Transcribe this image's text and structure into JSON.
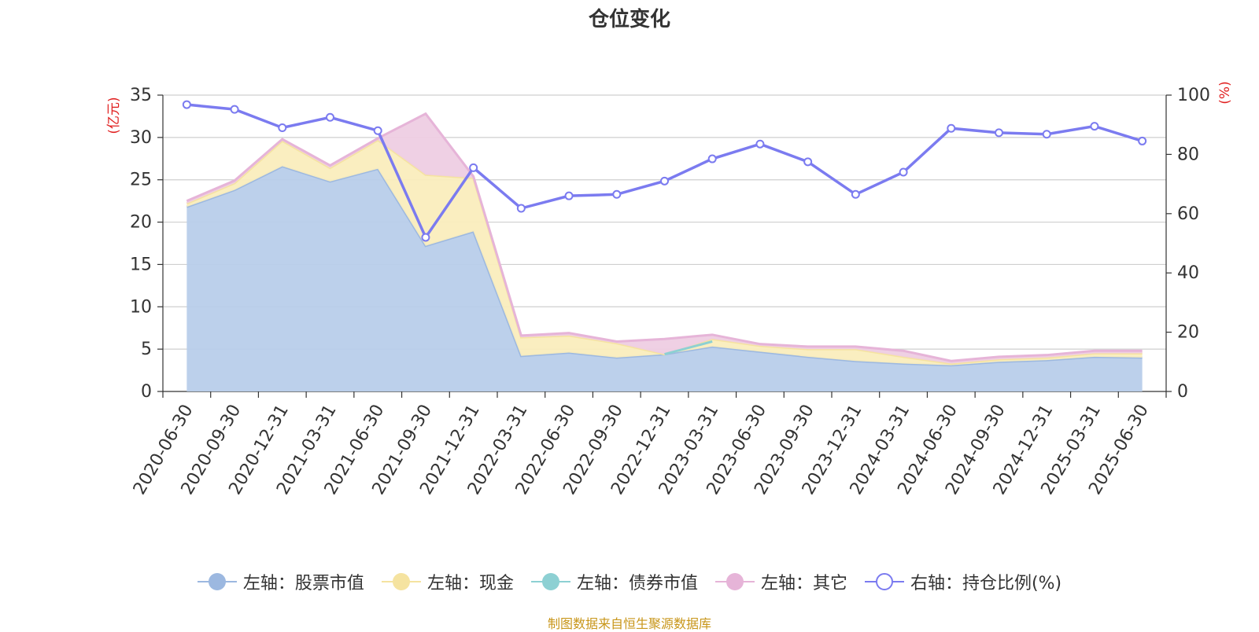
{
  "title": "仓位变化",
  "source": "制图数据来自恒生聚源数据库",
  "chart_data": {
    "type": "area",
    "categories": [
      "2020-06-30",
      "2020-09-30",
      "2020-12-31",
      "2021-03-31",
      "2021-06-30",
      "2021-09-30",
      "2021-12-31",
      "2022-03-31",
      "2022-06-30",
      "2022-09-30",
      "2022-12-31",
      "2023-03-31",
      "2023-06-30",
      "2023-09-30",
      "2023-12-31",
      "2024-03-31",
      "2024-06-30",
      "2024-09-30",
      "2024-12-31",
      "2025-03-31",
      "2025-06-30"
    ],
    "left_axis": {
      "label": "(亿元)",
      "ylim": [
        0,
        35
      ],
      "ticks": [
        0,
        5,
        10,
        15,
        20,
        25,
        30,
        35
      ]
    },
    "right_axis": {
      "label": "(%)",
      "ylim": [
        0,
        100
      ],
      "ticks": [
        0,
        20,
        40,
        60,
        80,
        100
      ]
    },
    "stacked": true,
    "series": [
      {
        "name": "左轴：股票市值",
        "axis": "left",
        "kind": "area",
        "color": "#9cb8e0",
        "fill": "#b8cdea",
        "values": [
          21.8,
          23.8,
          26.6,
          24.8,
          26.3,
          17.2,
          18.9,
          4.2,
          4.6,
          4.0,
          4.4,
          5.3,
          4.7,
          4.1,
          3.6,
          3.3,
          3.1,
          3.5,
          3.7,
          4.1,
          4.0
        ]
      },
      {
        "name": "左轴：现金",
        "axis": "left",
        "kind": "area",
        "color": "#f5e3a0",
        "fill": "#faedbd",
        "values": [
          0.4,
          0.8,
          3.0,
          1.6,
          3.4,
          8.4,
          6.3,
          2.2,
          2.0,
          1.7,
          0.0,
          0.9,
          0.7,
          0.9,
          1.4,
          0.8,
          0.2,
          0.3,
          0.3,
          0.4,
          0.5
        ]
      },
      {
        "name": "左轴：债券市值",
        "axis": "left",
        "kind": "area",
        "color": "#8dd0d3",
        "fill": "#a6dbdd",
        "values": [
          0,
          0,
          0,
          0,
          0,
          0,
          0,
          0,
          0,
          0,
          0,
          0.0,
          0,
          0,
          0,
          0,
          0,
          0,
          0,
          0,
          0
        ]
      },
      {
        "name": "左轴：其它",
        "axis": "left",
        "kind": "area",
        "color": "#e6b4d8",
        "fill": "#eecde3",
        "values": [
          0.3,
          0.3,
          0.2,
          0.3,
          0.2,
          7.2,
          0.2,
          0.2,
          0.3,
          0.2,
          1.8,
          0.5,
          0.2,
          0.3,
          0.3,
          0.7,
          0.3,
          0.3,
          0.3,
          0.3,
          0.3
        ]
      },
      {
        "name": "右轴：持仓比例(%)",
        "axis": "right",
        "kind": "line",
        "color": "#7b7bf0",
        "values": [
          96.8,
          95.2,
          89.0,
          92.5,
          88.0,
          52.0,
          75.5,
          61.8,
          66.0,
          66.5,
          71.0,
          78.5,
          83.5,
          77.5,
          66.5,
          74.0,
          88.8,
          87.3,
          86.8,
          89.5,
          84.5
        ]
      }
    ],
    "bond_segment": {
      "from": 10,
      "to": 11,
      "values": [
        4.4,
        5.9
      ]
    },
    "grid": true,
    "legend_position": "bottom"
  }
}
